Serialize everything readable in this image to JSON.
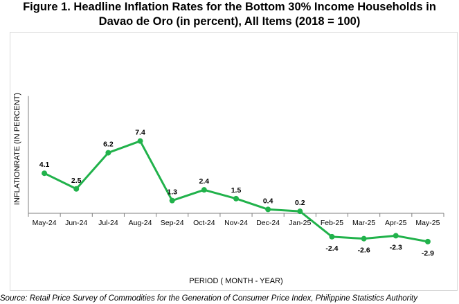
{
  "title": {
    "line1": "Figure 1. Headline Inflation Rates for the Bottom 30% Income Households in",
    "line2": "Davao de Oro (in percent), All Items (2018 = 100)"
  },
  "source": "Source: Retail Price Survey of Commodities for the Generation of Consumer Price Index, Philippine Statistics Authority",
  "colors": {
    "line": "#21b24b",
    "axis": "#7f7f7f",
    "frame": "#d9d9d9"
  },
  "chart_data": {
    "type": "line",
    "title": "Figure 1. Headline Inflation Rates for the Bottom 30% Income Households in Davao de Oro (in percent), All Items (2018 = 100)",
    "xlabel": "PERIOD ( MONTH - YEAR)",
    "ylabel": "INFLATIONRATE (IN PERCENT)",
    "categories": [
      "May-24",
      "Jun-24",
      "Jul-24",
      "Aug-24",
      "Sep-24",
      "Oct-24",
      "Nov-24",
      "Dec-24",
      "Jan-25",
      "Feb-25",
      "Mar-25",
      "Apr-25",
      "May-25"
    ],
    "series": [
      {
        "values": [
          4.1,
          2.5,
          6.2,
          7.4,
          1.3,
          2.4,
          1.5,
          0.4,
          0.2,
          -2.4,
          -2.6,
          -2.3,
          -2.9
        ]
      }
    ],
    "data_labels": [
      "4.1",
      "2.5",
      "6.2",
      "7.4",
      "1.3",
      "2.4",
      "1.5",
      "0.4",
      "0.2",
      "-2.4",
      "-2.6",
      "-2.3",
      "-2.9"
    ],
    "ylim": [
      -3.5,
      12
    ],
    "grid": false,
    "legend": "none"
  }
}
